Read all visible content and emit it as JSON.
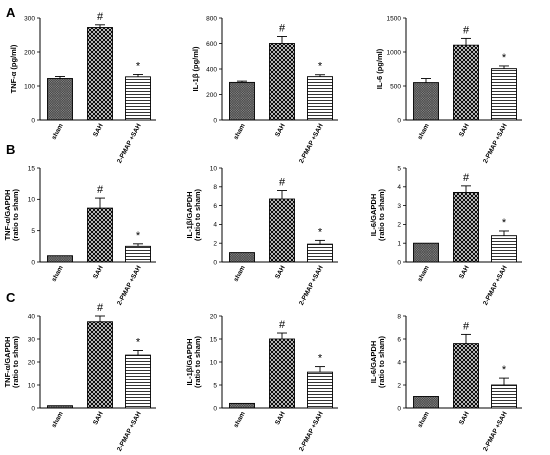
{
  "panels": [
    {
      "label": "A"
    },
    {
      "label": "B"
    },
    {
      "label": "C"
    }
  ],
  "colors": {
    "axis": "#000000",
    "bar_stroke": "#000000",
    "background": "#ffffff"
  },
  "chart_data": [
    {
      "type": "bar",
      "row": 0,
      "col": 0,
      "ylabel": "TNF-α (pg/ml)",
      "ylim": [
        0,
        300
      ],
      "ticks": [
        0,
        100,
        200,
        300
      ],
      "categories": [
        "sham",
        "SAH",
        "2-PMAP +SAH"
      ],
      "values": [
        122,
        272,
        127
      ],
      "errors": [
        6,
        8,
        7
      ],
      "marks": [
        "",
        "#",
        "*"
      ],
      "patterns": [
        "dense",
        "check",
        "stripe"
      ]
    },
    {
      "type": "bar",
      "row": 0,
      "col": 1,
      "ylabel": "IL-1β (pg/ml)",
      "ylim": [
        0,
        800
      ],
      "ticks": [
        0,
        200,
        400,
        600,
        800
      ],
      "categories": [
        "sham",
        "SAH",
        "2-PMAP +SAH"
      ],
      "values": [
        295,
        600,
        340
      ],
      "errors": [
        10,
        55,
        15
      ],
      "marks": [
        "",
        "#",
        "*"
      ],
      "patterns": [
        "dense",
        "check",
        "stripe"
      ]
    },
    {
      "type": "bar",
      "row": 0,
      "col": 2,
      "ylabel": "IL-6 (pg/ml)",
      "ylim": [
        0,
        1500
      ],
      "ticks": [
        0,
        500,
        1000,
        1500
      ],
      "categories": [
        "sham",
        "SAH",
        "2-PMAP +SAH"
      ],
      "values": [
        550,
        1100,
        755
      ],
      "errors": [
        60,
        100,
        40
      ],
      "marks": [
        "",
        "#",
        "*"
      ],
      "patterns": [
        "dense",
        "check",
        "stripe"
      ]
    },
    {
      "type": "bar",
      "row": 1,
      "col": 0,
      "ylabel": [
        "TNF-α/GAPDH",
        "(ratio to sham)"
      ],
      "ylim": [
        0,
        15
      ],
      "ticks": [
        0,
        5,
        10,
        15
      ],
      "categories": [
        "sham",
        "SAH",
        "2-PMAP +SAH"
      ],
      "values": [
        1,
        8.6,
        2.5
      ],
      "errors": [
        0,
        1.6,
        0.4
      ],
      "marks": [
        "",
        "#",
        "*"
      ],
      "patterns": [
        "dense",
        "check",
        "stripe"
      ]
    },
    {
      "type": "bar",
      "row": 1,
      "col": 1,
      "ylabel": [
        "IL-1β/GAPDH",
        "(ratio to sham)"
      ],
      "ylim": [
        0,
        10
      ],
      "ticks": [
        0,
        2,
        4,
        6,
        8,
        10
      ],
      "categories": [
        "sham",
        "SAH",
        "2-PMAP +SAH"
      ],
      "values": [
        1,
        6.7,
        1.9
      ],
      "errors": [
        0,
        0.9,
        0.4
      ],
      "marks": [
        "",
        "#",
        "*"
      ],
      "patterns": [
        "dense",
        "check",
        "stripe"
      ]
    },
    {
      "type": "bar",
      "row": 1,
      "col": 2,
      "ylabel": [
        "IL-6/GAPDH",
        "(ratio to sham)"
      ],
      "ylim": [
        0,
        5
      ],
      "ticks": [
        0,
        1,
        2,
        3,
        4,
        5
      ],
      "categories": [
        "sham",
        "SAH",
        "2-PMAP +SAH"
      ],
      "values": [
        1,
        3.7,
        1.4
      ],
      "errors": [
        0,
        0.35,
        0.25
      ],
      "marks": [
        "",
        "#",
        "*"
      ],
      "patterns": [
        "dense",
        "check",
        "stripe"
      ]
    },
    {
      "type": "bar",
      "row": 2,
      "col": 0,
      "ylabel": [
        "TNF-α/GAPDH",
        "(ratio to sham)"
      ],
      "ylim": [
        0,
        40
      ],
      "ticks": [
        0,
        10,
        20,
        30,
        40
      ],
      "categories": [
        "sham",
        "SAH",
        "2-PMAP +SAH"
      ],
      "values": [
        1,
        37.5,
        23
      ],
      "errors": [
        0,
        2.5,
        2
      ],
      "marks": [
        "",
        "#",
        "*"
      ],
      "patterns": [
        "dense",
        "check",
        "stripe"
      ]
    },
    {
      "type": "bar",
      "row": 2,
      "col": 1,
      "ylabel": [
        "IL-1β/GAPDH",
        "(ratio to sham)"
      ],
      "ylim": [
        0,
        20
      ],
      "ticks": [
        0,
        5,
        10,
        15,
        20
      ],
      "categories": [
        "sham",
        "SAH",
        "2-PMAP +SAH"
      ],
      "values": [
        1,
        15,
        7.8
      ],
      "errors": [
        0,
        1.3,
        1.2
      ],
      "marks": [
        "",
        "#",
        "*"
      ],
      "patterns": [
        "dense",
        "check",
        "stripe"
      ]
    },
    {
      "type": "bar",
      "row": 2,
      "col": 2,
      "ylabel": [
        "IL-6/GAPDH",
        "(ratio to sham)"
      ],
      "ylim": [
        0,
        8
      ],
      "ticks": [
        0,
        2,
        4,
        6,
        8
      ],
      "categories": [
        "sham",
        "SAH",
        "2-PMAP +SAH"
      ],
      "values": [
        1,
        5.6,
        2
      ],
      "errors": [
        0,
        0.8,
        0.6
      ],
      "marks": [
        "",
        "#",
        "*"
      ],
      "patterns": [
        "dense",
        "check",
        "stripe"
      ]
    }
  ]
}
